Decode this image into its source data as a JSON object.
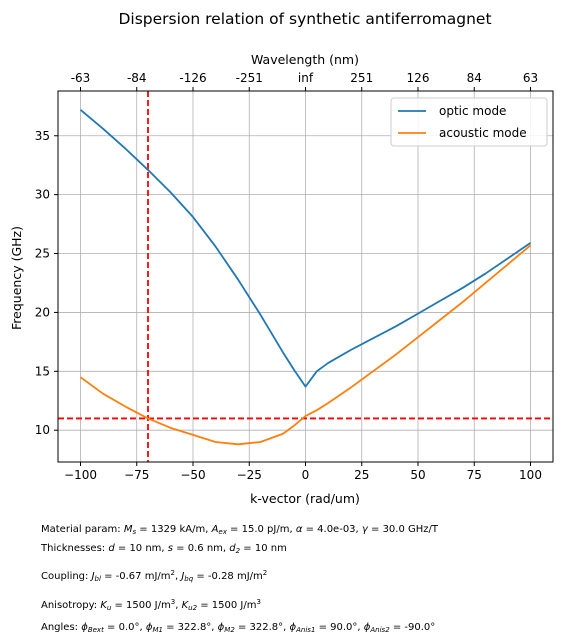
{
  "chart_data": {
    "type": "line",
    "title": "Dispersion relation of synthetic antiferromagnet",
    "xlabel": "k-vector (rad/um)",
    "ylabel": "Frequency (GHz)",
    "top_xlabel": "Wavelength (nm)",
    "xlim": [
      -110,
      110
    ],
    "ylim": [
      7.3,
      38.8
    ],
    "xticks": [
      -100,
      -75,
      -50,
      -25,
      0,
      25,
      50,
      75,
      100
    ],
    "xtick_labels": [
      "−100",
      "−75",
      "−50",
      "−25",
      "0",
      "25",
      "50",
      "75",
      "100"
    ],
    "yticks": [
      10,
      15,
      20,
      25,
      30,
      35
    ],
    "ytick_labels": [
      "10",
      "15",
      "20",
      "25",
      "30",
      "35"
    ],
    "top_ticks": [
      -100,
      -75,
      -50,
      -25,
      0,
      25,
      50,
      75,
      100
    ],
    "top_tick_labels": [
      "-63",
      "-84",
      "-126",
      "-251",
      "inf",
      "251",
      "126",
      "84",
      "63"
    ],
    "grid": true,
    "legend_position": "top-right",
    "series": [
      {
        "name": "optic mode",
        "color": "#1f77b4",
        "x": [
          -100,
          -90,
          -80,
          -70,
          -60,
          -50,
          -40,
          -30,
          -20,
          -10,
          -5,
          0,
          5,
          10,
          20,
          30,
          40,
          50,
          60,
          70,
          80,
          90,
          100
        ],
        "y": [
          37.2,
          35.6,
          33.9,
          32.1,
          30.2,
          28.1,
          25.6,
          22.8,
          19.8,
          16.6,
          15.1,
          13.7,
          15.0,
          15.7,
          16.8,
          17.8,
          18.8,
          19.9,
          21.0,
          22.1,
          23.3,
          24.6,
          25.9
        ]
      },
      {
        "name": "acoustic mode",
        "color": "#ff7f0e",
        "x": [
          -100,
          -90,
          -80,
          -70,
          -60,
          -50,
          -40,
          -30,
          -20,
          -10,
          -5,
          0,
          5,
          10,
          20,
          30,
          40,
          50,
          60,
          70,
          80,
          90,
          100
        ],
        "y": [
          14.5,
          13.1,
          12.0,
          11.0,
          10.2,
          9.6,
          9.0,
          8.8,
          9.0,
          9.7,
          10.4,
          11.2,
          11.7,
          12.3,
          13.6,
          15.0,
          16.4,
          17.9,
          19.4,
          20.9,
          22.5,
          24.1,
          25.7
        ]
      }
    ],
    "reference_lines": [
      {
        "orientation": "vertical",
        "x": -70,
        "color": "#ff0000",
        "style": "dashed"
      },
      {
        "orientation": "horizontal",
        "y": 11.0,
        "color": "#ff0000",
        "style": "dashed"
      }
    ]
  },
  "notes": {
    "material_prefix": "Material param: ",
    "ms_var": "M",
    "ms_sub": "s",
    "ms_value": " = 1329 kA/m, ",
    "aex_var": "A",
    "aex_sub": "ex",
    "aex_value": " = 15.0 pJ/m, ",
    "alpha_var": "α",
    "alpha_value": " = 4.0e-03, ",
    "gamma_var": "γ",
    "gamma_value": " = 30.0 GHz/T",
    "thick_prefix": "Thicknesses: ",
    "d_var": "d",
    "d_value": " = 10 nm, ",
    "s_var": "s",
    "s_value": " = 0.6 nm, ",
    "d2_var": "d",
    "d2_sub": "2",
    "d2_value": " = 10 nm",
    "coupling_prefix": "Coupling: ",
    "jbl_var": "J",
    "jbl_sub": "bl",
    "jbl_value": " = -0.67 mJ/m",
    "jbl_sup": "2",
    "jbl_sep": ", ",
    "jbq_var": "J",
    "jbq_sub": "bq",
    "jbq_value": " = -0.28 mJ/m",
    "jbq_sup": "2",
    "aniso_prefix": "Anisotropy: ",
    "ku_var": "K",
    "ku_sub": "u",
    "ku_value": " = 1500 J/m",
    "ku_sup": "3",
    "ku_sep": ", ",
    "ku2_var": "K",
    "ku2_sub": "u2",
    "ku2_value": " = 1500 J/m",
    "ku2_sup": "3",
    "angles_prefix": "Angles: ",
    "a1_var": "ϕ",
    "a1_sub": "Bext",
    "a1_value": " = 0.0°, ",
    "a2_var": "ϕ",
    "a2_sub": "M1",
    "a2_value": " = 322.8°, ",
    "a3_var": "ϕ",
    "a3_sub": "M2",
    "a3_value": " = 322.8°, ",
    "a4_var": "ϕ",
    "a4_sub": "Anis1",
    "a4_value": " = 90.0°, ",
    "a5_var": "ϕ",
    "a5_sub": "Anis2",
    "a5_value": " = -90.0°"
  }
}
